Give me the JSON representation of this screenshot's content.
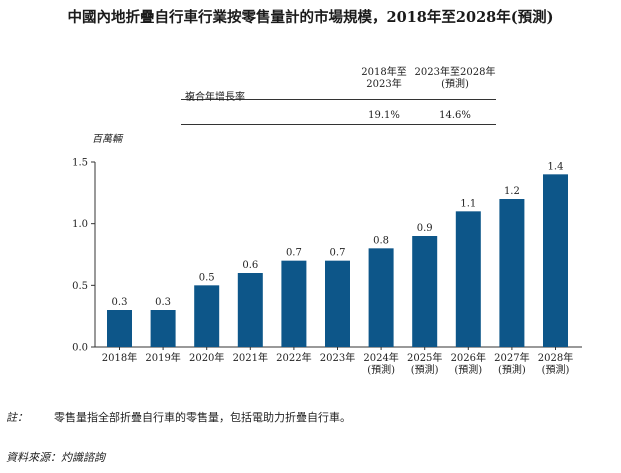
{
  "title": "中國內地折疊自行車行業按零售量計的市場規模，2018年至2028年(預測)",
  "cagr_table": {
    "row_label": "複合年增長率",
    "columns": [
      {
        "header": [
          "2018年至",
          "2023年"
        ],
        "value": "19.1%"
      },
      {
        "header": [
          "2023年至2028年",
          "(預測)"
        ],
        "value": "14.6%"
      }
    ]
  },
  "chart_data": {
    "type": "bar",
    "title": "中國內地折疊自行車行業按零售量計的市場規模，2018年至2028年(預測)",
    "ylabel": "百萬輛",
    "xlabel": "",
    "ylim": [
      0,
      1.5
    ],
    "yticks": [
      "0.0",
      "0.5",
      "1.0",
      "1.5"
    ],
    "grid": false,
    "bar_color": "#0d5689",
    "categories": [
      [
        "2018年"
      ],
      [
        "2019年"
      ],
      [
        "2020年"
      ],
      [
        "2021年"
      ],
      [
        "2022年"
      ],
      [
        "2023年"
      ],
      [
        "2024年",
        "(預測)"
      ],
      [
        "2025年",
        "(預測)"
      ],
      [
        "2026年",
        "(預測)"
      ],
      [
        "2027年",
        "(預測)"
      ],
      [
        "2028年",
        "(預測)"
      ]
    ],
    "values": [
      0.3,
      0.3,
      0.5,
      0.6,
      0.7,
      0.7,
      0.8,
      0.9,
      1.1,
      1.2,
      1.4
    ],
    "data_labels": [
      "0.3",
      "0.3",
      "0.5",
      "0.6",
      "0.7",
      "0.7",
      "0.8",
      "0.9",
      "1.1",
      "1.2",
      "1.4"
    ]
  },
  "note": {
    "label": "註：",
    "text": "零售量指全部折疊自行車的零售量，包括電助力折疊自行車。"
  },
  "source": "資料來源：灼識諮詢"
}
